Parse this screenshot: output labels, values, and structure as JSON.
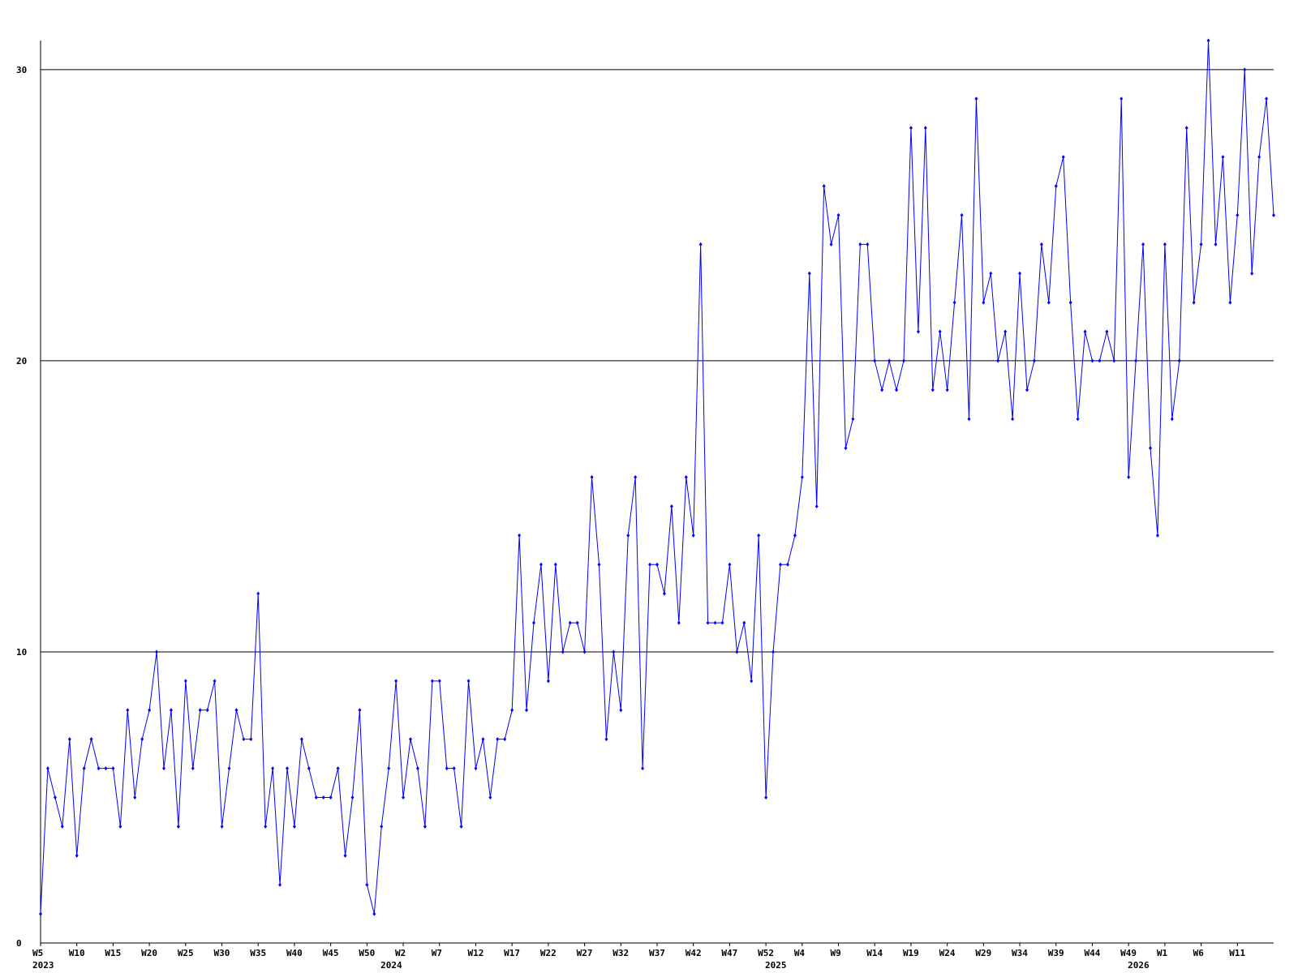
{
  "chart_data": {
    "type": "line",
    "categories": [
      "W5",
      null,
      null,
      null,
      null,
      "W10",
      null,
      null,
      null,
      null,
      "W15",
      null,
      null,
      null,
      null,
      "W20",
      null,
      null,
      null,
      null,
      "W25",
      null,
      null,
      null,
      null,
      "W30",
      null,
      null,
      null,
      null,
      "W35",
      null,
      null,
      null,
      null,
      "W40",
      null,
      null,
      null,
      null,
      "W45",
      null,
      null,
      null,
      null,
      "W50",
      null,
      null,
      null,
      null,
      "W2",
      null,
      null,
      null,
      null,
      "W7",
      null,
      null,
      null,
      null,
      "W12",
      null,
      null,
      null,
      null,
      "W17",
      null,
      null,
      null,
      null,
      "W22",
      null,
      null,
      null,
      null,
      "W27",
      null,
      null,
      null,
      null,
      "W32",
      null,
      null,
      null,
      null,
      "W37",
      null,
      null,
      null,
      null,
      "W42",
      null,
      null,
      null,
      null,
      "W47",
      null,
      null,
      null,
      null,
      "W52",
      null,
      null,
      null,
      null,
      "W4",
      null,
      null,
      null,
      null,
      "W9",
      null,
      null,
      null,
      null,
      "W14",
      null,
      null,
      null,
      null,
      "W19",
      null,
      null,
      null,
      null,
      "W24",
      null,
      null,
      null,
      null,
      "W29",
      null,
      null,
      null,
      null,
      "W34",
      null,
      null,
      null,
      null,
      "W39",
      null,
      null,
      null,
      null,
      "W44",
      null,
      null,
      null,
      null,
      "W49",
      null,
      null,
      null,
      null,
      "W1",
      null,
      null,
      null,
      null,
      "W6",
      null,
      null,
      null,
      null,
      "W11",
      null,
      null,
      null,
      null,
      null
    ],
    "years": [
      "2023",
      null,
      null,
      null,
      null,
      null,
      null,
      null,
      null,
      null,
      null,
      null,
      null,
      null,
      null,
      null,
      null,
      null,
      null,
      null,
      null,
      null,
      null,
      null,
      null,
      null,
      null,
      null,
      null,
      null,
      null,
      null,
      null,
      null,
      null,
      null,
      null,
      null,
      null,
      null,
      null,
      null,
      null,
      null,
      null,
      null,
      null,
      null,
      "2024",
      null,
      null,
      null,
      null,
      null,
      null,
      null,
      null,
      null,
      null,
      null,
      null,
      null,
      null,
      null,
      null,
      null,
      null,
      null,
      null,
      null,
      null,
      null,
      null,
      null,
      null,
      null,
      null,
      null,
      null,
      null,
      null,
      null,
      null,
      null,
      null,
      null,
      null,
      null,
      null,
      null,
      null,
      null,
      null,
      null,
      null,
      null,
      null,
      null,
      null,
      null,
      null,
      "2025",
      null,
      null,
      null,
      null,
      null,
      null,
      null,
      null,
      null,
      null,
      null,
      null,
      null,
      null,
      null,
      null,
      null,
      null,
      null,
      null,
      null,
      null,
      null,
      null,
      null,
      null,
      null,
      null,
      null,
      null,
      null,
      null,
      null,
      null,
      null,
      null,
      null,
      null,
      null,
      null,
      null,
      null,
      null,
      null,
      null,
      null,
      null,
      null,
      null,
      "2026",
      null,
      null,
      null,
      null,
      null,
      null,
      null,
      null,
      null,
      null,
      null,
      null,
      null,
      null,
      null,
      null
    ],
    "series": [
      {
        "color": "#0000ff",
        "values": [
          1,
          6,
          5,
          4,
          7,
          3,
          6,
          7,
          6,
          6,
          6,
          4,
          8,
          5,
          7,
          8,
          10,
          6,
          8,
          4,
          9,
          6,
          8,
          8,
          9,
          4,
          6,
          8,
          7,
          7,
          12,
          4,
          6,
          2,
          6,
          4,
          7,
          6,
          5,
          5,
          5,
          6,
          3,
          5,
          8,
          2,
          1,
          4,
          6,
          9,
          5,
          7,
          6,
          4,
          9,
          9,
          6,
          6,
          4,
          9,
          6,
          7,
          5,
          7,
          7,
          8,
          14,
          8,
          11,
          13,
          9,
          13,
          10,
          11,
          11,
          10,
          16,
          13,
          7,
          10,
          8,
          14,
          16,
          6,
          13,
          13,
          12,
          15,
          11,
          16,
          14,
          24,
          11,
          11,
          11,
          13,
          10,
          11,
          9,
          14,
          5,
          10,
          13,
          13,
          14,
          16,
          23,
          15,
          26,
          24,
          25,
          17,
          18,
          24,
          24,
          20,
          19,
          20,
          19,
          20,
          28,
          21,
          28,
          19,
          21,
          19,
          22,
          25,
          18,
          29,
          22,
          23,
          20,
          21,
          18,
          23,
          19,
          20,
          24,
          22,
          26,
          27,
          22,
          18,
          21,
          20,
          20,
          21,
          20,
          29,
          16,
          20,
          24,
          17,
          14,
          24,
          18,
          20,
          28,
          22,
          24,
          31,
          24,
          27,
          22,
          25,
          30,
          23,
          27,
          29,
          25
        ]
      }
    ],
    "ylim": [
      0,
      31
    ],
    "yticks": [
      0,
      10,
      20,
      30
    ],
    "grid": true
  }
}
